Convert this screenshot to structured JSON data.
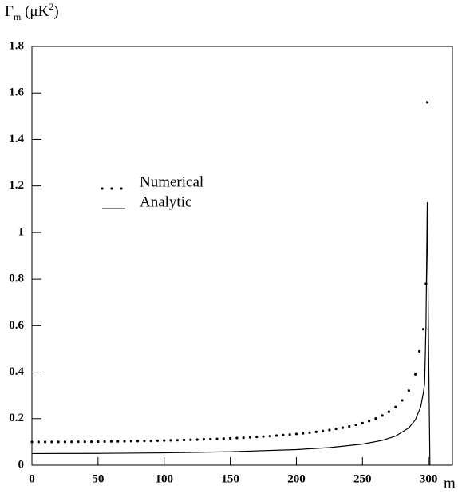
{
  "chart_data": {
    "type": "scatter-line",
    "ylabel": {
      "symbol": "Γ",
      "subscript": "m",
      "unit": " (μK",
      "power": "2",
      "close": ")"
    },
    "xlabel": "m",
    "xlim": [
      0,
      318
    ],
    "ylim": [
      0,
      1.8
    ],
    "xticks": [
      0,
      50,
      100,
      150,
      200,
      250,
      300
    ],
    "yticks": [
      0,
      0.2,
      0.4,
      0.6,
      0.8,
      1,
      1.2,
      1.4,
      1.6,
      1.8
    ],
    "legend": "upper left",
    "series": [
      {
        "name": "Numerical",
        "kind": "dots",
        "color": "#000000",
        "x": [
          0,
          5,
          10,
          15,
          20,
          25,
          30,
          35,
          40,
          45,
          50,
          55,
          60,
          65,
          70,
          75,
          80,
          85,
          90,
          95,
          100,
          105,
          110,
          115,
          120,
          125,
          130,
          135,
          140,
          145,
          150,
          155,
          160,
          165,
          170,
          175,
          180,
          185,
          190,
          195,
          200,
          205,
          210,
          215,
          220,
          225,
          230,
          235,
          240,
          245,
          250,
          255,
          260,
          265,
          270,
          275,
          280,
          285,
          290,
          293,
          296,
          298,
          299
        ],
        "values": [
          0.1,
          0.1,
          0.1001,
          0.1001,
          0.1002,
          0.1003,
          0.1005,
          0.1007,
          0.1009,
          0.1011,
          0.1014,
          0.1017,
          0.1021,
          0.1024,
          0.1028,
          0.1033,
          0.1038,
          0.1043,
          0.1048,
          0.1054,
          0.1061,
          0.1068,
          0.1075,
          0.1083,
          0.1091,
          0.11,
          0.111,
          0.112,
          0.1131,
          0.1142,
          0.1155,
          0.1168,
          0.1182,
          0.1197,
          0.1214,
          0.1231,
          0.125,
          0.127,
          0.1292,
          0.1316,
          0.1342,
          0.137,
          0.14,
          0.1434,
          0.1471,
          0.1512,
          0.1557,
          0.1609,
          0.1667,
          0.1732,
          0.1809,
          0.1898,
          0.2004,
          0.2133,
          0.2294,
          0.2502,
          0.2785,
          0.3203,
          0.3906,
          0.49,
          0.585,
          0.78,
          1.56
        ]
      },
      {
        "name": "Analytic",
        "kind": "line",
        "color": "#000000",
        "x": [
          0,
          50,
          100,
          150,
          200,
          225,
          250,
          265,
          275,
          285,
          290,
          294,
          296,
          297,
          298,
          299,
          300,
          301
        ],
        "values": [
          0.05,
          0.0507,
          0.053,
          0.0577,
          0.0671,
          0.0756,
          0.0905,
          0.1067,
          0.1251,
          0.16,
          0.195,
          0.25,
          0.31,
          0.35,
          0.6,
          1.13,
          0.5,
          0
        ]
      }
    ]
  }
}
